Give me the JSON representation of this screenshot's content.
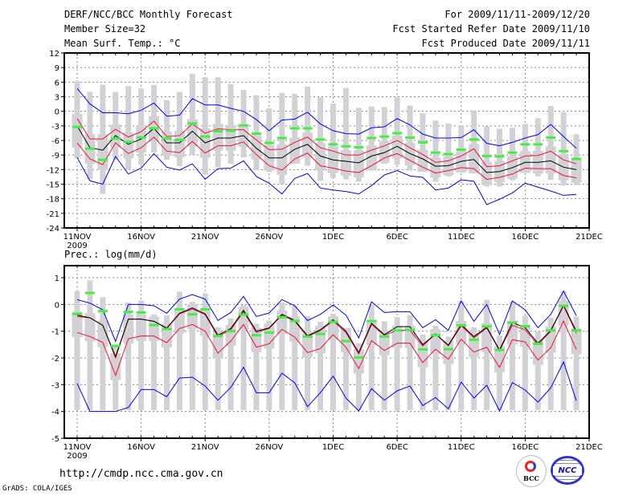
{
  "header": {
    "title": "DERF/NCC/BCC Monthly Forecast",
    "member_size": "Member Size=32",
    "variable": "Mean Surf. Temp.: °C",
    "period": "For 2009/11/11-2009/12/20",
    "started": "Fcst Started Refer Date 2009/11/10",
    "produced": "Fcst Produced Date 2009/11/11"
  },
  "footer": {
    "url": "http://cmdp.ncc.cma.gov.cn",
    "grads": "GrADS: COLA/IGES",
    "logo_bcc": "BCC",
    "logo_ncc": "NCC"
  },
  "colors": {
    "bar": "#d2d2d6",
    "obs": "#44ee44",
    "mean": "#000000",
    "spread": "#ee1133",
    "envelope": "#0000ee",
    "grid": "#888888"
  },
  "chart_data": [
    {
      "type": "line",
      "title": "Mean Surf. Temp.: °C",
      "ylim": [
        -24,
        12
      ],
      "yticks": [
        12,
        9,
        6,
        3,
        0,
        -3,
        -6,
        -9,
        -12,
        -15,
        -18,
        -21,
        -24
      ],
      "xtick_labels": [
        "11NOV",
        "16NOV",
        "21NOV",
        "26NOV",
        "1DEC",
        "6DEC",
        "11DEC",
        "16DEC",
        "21DEC"
      ],
      "xtick_year": "2009",
      "grid": true,
      "n_days": 40,
      "series": [
        {
          "name": "envelope_max",
          "values": [
            4.7,
            1.5,
            -0.3,
            -0.3,
            -0.5,
            0.2,
            1.7,
            -1,
            -0.8,
            2.6,
            1.3,
            1.3,
            0.6,
            0,
            -1.7,
            -4,
            -1.8,
            -1.6,
            -0.2,
            -2.6,
            -4,
            -4.6,
            -4.7,
            -3.4,
            -3.2,
            -1.5,
            -2.8,
            -4.7,
            -5.5,
            -5.5,
            -5.4,
            -3.8,
            -6.6,
            -7.1,
            -6.4,
            -5.5,
            -4.8,
            -2.7,
            -5.2,
            -7.6
          ]
        },
        {
          "name": "spread_upper",
          "values": [
            -1.5,
            -5.7,
            -5.7,
            -3.7,
            -5.3,
            -4.2,
            -2,
            -5.2,
            -5,
            -2.6,
            -4.5,
            -3.6,
            -3.8,
            -3.8,
            -5.9,
            -7.9,
            -7.8,
            -6.4,
            -5.3,
            -7.5,
            -8.2,
            -9,
            -9,
            -8,
            -7.1,
            -6,
            -7.5,
            -8.9,
            -10.5,
            -10.2,
            -9.2,
            -7.7,
            -11.4,
            -11.2,
            -10.2,
            -9.2,
            -9.1,
            -8.2,
            -10,
            -10.8
          ]
        },
        {
          "name": "ensemble_mean",
          "values": [
            -3,
            -7.5,
            -8,
            -5,
            -6.8,
            -5.7,
            -3.5,
            -6.5,
            -6.5,
            -4.1,
            -6.5,
            -5.5,
            -5.5,
            -5,
            -7.6,
            -9.6,
            -9.6,
            -7.8,
            -6.8,
            -9.2,
            -10,
            -10.3,
            -10.6,
            -9.2,
            -8.5,
            -7.2,
            -8.7,
            -9.8,
            -11.3,
            -11.2,
            -10.3,
            -9.9,
            -12.6,
            -12.4,
            -11.6,
            -10.5,
            -10.5,
            -10.2,
            -11.5,
            -12
          ]
        },
        {
          "name": "spread_lower",
          "values": [
            -6.5,
            -9.8,
            -11,
            -6.5,
            -8.7,
            -7.5,
            -5.3,
            -8.2,
            -8.5,
            -6.2,
            -8.6,
            -7.1,
            -7.1,
            -6.3,
            -8.9,
            -11.2,
            -12.1,
            -9.8,
            -8.6,
            -11.2,
            -11.7,
            -12.3,
            -12.6,
            -11.2,
            -9.6,
            -8.7,
            -10.1,
            -11.5,
            -12.7,
            -12.2,
            -11.6,
            -11.8,
            -14,
            -13.6,
            -12.9,
            -11.7,
            -11.8,
            -11.8,
            -13.2,
            -13.7
          ]
        },
        {
          "name": "envelope_min",
          "values": [
            -9.5,
            -14.3,
            -15,
            -9.3,
            -12.9,
            -11.7,
            -8.7,
            -11.5,
            -12.1,
            -10.8,
            -14,
            -11.8,
            -11.7,
            -10.2,
            -13.4,
            -14.8,
            -17,
            -13.8,
            -12.8,
            -15.8,
            -16.2,
            -16.5,
            -17,
            -15.3,
            -13.1,
            -12.2,
            -13.3,
            -13.6,
            -16.2,
            -15.8,
            -14.1,
            -14.4,
            -19.2,
            -18.1,
            -16.8,
            -14.8,
            -15.6,
            -16.4,
            -17.3,
            -17.1
          ]
        },
        {
          "name": "observed_marker",
          "values": [
            -3.2,
            -7.7,
            -10,
            -5.6,
            -6.3,
            -5.4,
            -3.5,
            -5.6,
            -5.9,
            -2.5,
            -5.2,
            -4.1,
            -4,
            -2.9,
            -4.6,
            -6.5,
            -5.5,
            -3.5,
            -3.5,
            -5.8,
            -6.8,
            -7.2,
            -7.4,
            -5.5,
            -5.2,
            -4.5,
            -5.4,
            -6.4,
            -8.5,
            -8.8,
            -7.9,
            -5.8,
            -9.2,
            -9.3,
            -8.5,
            -6.8,
            -6.8,
            -5.4,
            -8.2,
            -9.8
          ]
        },
        {
          "name": "range_max",
          "values": [
            6.2,
            4,
            5.5,
            4,
            5.2,
            4.7,
            5.4,
            2.3,
            4,
            7.7,
            7,
            7,
            5.6,
            4.4,
            3.3,
            0.6,
            3.8,
            3.6,
            5.1,
            2.9,
            1.6,
            4.8,
            0.7,
            1,
            0.9,
            2.8,
            1.2,
            -0.4,
            -1.9,
            -2.5,
            -2.9,
            0.2,
            -3.1,
            -3.6,
            -3.4,
            -2.6,
            -1.4,
            1.1,
            -0.2,
            -4.7
          ]
        },
        {
          "name": "range_min",
          "values": [
            -9.7,
            -14,
            -17,
            -10,
            -12,
            -11,
            -8.5,
            -10,
            -11.3,
            -9,
            -13,
            -11.5,
            -10.8,
            -9.5,
            -12.1,
            -12.5,
            -15,
            -10.4,
            -11.2,
            -14.3,
            -13.7,
            -14,
            -14.5,
            -12,
            -10.8,
            -11,
            -12.2,
            -12,
            -14.5,
            -13.4,
            -12.6,
            -11.8,
            -15.5,
            -15.5,
            -14.2,
            -12,
            -13.4,
            -14.1,
            -15.3,
            -15.2
          ]
        }
      ]
    },
    {
      "type": "line",
      "title": "Prec.: log(mm/d)",
      "ylim": [
        -5,
        1.45
      ],
      "yticks": [
        1,
        0,
        -1,
        -2,
        -3,
        -4,
        -5
      ],
      "xtick_labels": [
        "11NOV",
        "16NOV",
        "21NOV",
        "26NOV",
        "1DEC",
        "6DEC",
        "11DEC",
        "16DEC",
        "21DEC"
      ],
      "xtick_year": "2009",
      "grid": true,
      "n_days": 40,
      "series": [
        {
          "name": "envelope_max",
          "values": [
            0.18,
            0.05,
            -0.2,
            -1.38,
            0,
            0,
            -0.05,
            -0.33,
            0.2,
            0.37,
            0.2,
            -0.6,
            -0.3,
            0.3,
            -0.45,
            -0.32,
            0.18,
            -0.05,
            -0.6,
            -0.37,
            -0.02,
            -0.4,
            -1.25,
            0.1,
            -0.3,
            -0.27,
            -0.27,
            -0.87,
            -0.57,
            -0.97,
            0.13,
            -0.63,
            0,
            -1.12,
            0.13,
            -0.2,
            -0.87,
            -0.37,
            0.5,
            -0.42
          ]
        },
        {
          "name": "spread_upper",
          "values": [
            -0.45,
            -0.5,
            -0.78,
            -2,
            -0.55,
            -0.55,
            -0.63,
            -0.9,
            -0.35,
            -0.17,
            -0.38,
            -1.2,
            -0.95,
            -0.27,
            -1.05,
            -0.9,
            -0.4,
            -0.63,
            -1.2,
            -0.98,
            -0.62,
            -1.05,
            -1.85,
            -0.75,
            -1.15,
            -0.97,
            -0.97,
            -1.55,
            -1.1,
            -1.55,
            -0.8,
            -1.25,
            -0.88,
            -1.73,
            -0.78,
            -0.95,
            -1.5,
            -1,
            -0.05,
            -1.08
          ]
        },
        {
          "name": "ensemble_mean",
          "values": [
            -0.4,
            -0.5,
            -0.78,
            -1.95,
            -0.55,
            -0.55,
            -0.63,
            -0.88,
            -0.33,
            -0.13,
            -0.35,
            -1.15,
            -0.9,
            -0.22,
            -1,
            -0.88,
            -0.37,
            -0.6,
            -1.17,
            -0.95,
            -0.57,
            -1,
            -1.8,
            -0.7,
            -1.13,
            -0.83,
            -0.83,
            -1.5,
            -1.1,
            -1.52,
            -0.75,
            -1.2,
            -0.85,
            -1.7,
            -0.68,
            -0.87,
            -1.45,
            -0.97,
            -0.03,
            -1
          ]
        },
        {
          "name": "spread_lower",
          "values": [
            -1.05,
            -1.2,
            -1.42,
            -2.65,
            -1.28,
            -1.18,
            -1.18,
            -1.43,
            -0.9,
            -0.75,
            -1,
            -1.82,
            -1.37,
            -0.75,
            -1.6,
            -1.47,
            -0.93,
            -1.22,
            -1.8,
            -1.65,
            -1.13,
            -1.6,
            -2.4,
            -1.35,
            -1.72,
            -1.45,
            -1.45,
            -2.17,
            -1.67,
            -2.05,
            -1.3,
            -1.78,
            -1.6,
            -2.35,
            -1.32,
            -1.4,
            -2.08,
            -1.62,
            -0.62,
            -1.68
          ]
        },
        {
          "name": "envelope_min",
          "values": [
            -2.95,
            -4,
            -4,
            -4,
            -3.85,
            -3.18,
            -3.18,
            -3.45,
            -2.75,
            -2.72,
            -3.05,
            -3.58,
            -3.1,
            -2.35,
            -3.3,
            -3.3,
            -2.57,
            -2.93,
            -3.82,
            -3.3,
            -2.68,
            -3.5,
            -3.98,
            -3.15,
            -3.58,
            -3.23,
            -3.05,
            -3.78,
            -3.48,
            -3.9,
            -2.9,
            -3.5,
            -3.02,
            -3.98,
            -2.92,
            -3.2,
            -3.65,
            -3.12,
            -2.15,
            -3.6
          ]
        },
        {
          "name": "observed_marker",
          "values": [
            -0.35,
            0.43,
            -0.25,
            -1.55,
            -0.28,
            -0.3,
            -0.77,
            -0.92,
            -0.18,
            -0.37,
            -0.18,
            -1.18,
            -1,
            -0.38,
            -1.15,
            -1.05,
            -0.48,
            -0.62,
            -1.2,
            -1.1,
            -0.65,
            -1.37,
            -1.98,
            -0.62,
            -1.2,
            -0.97,
            -0.95,
            -1.68,
            -1.15,
            -1.67,
            -0.78,
            -1.32,
            -0.82,
            -1.7,
            -0.68,
            -0.82,
            -1.47,
            -0.97,
            -0.05,
            -0.97
          ]
        },
        {
          "name": "range_max",
          "values": [
            0.5,
            0.9,
            0.27,
            -1.5,
            0.07,
            0.15,
            -0.37,
            -0.4,
            0.48,
            0.1,
            0.42,
            -0.85,
            -0.52,
            -0.02,
            -0.72,
            -0.6,
            0.07,
            -0.05,
            -0.43,
            -0.65,
            -0.35,
            -1,
            -1.45,
            0,
            -0.63,
            -0.47,
            -0.4,
            -1.12,
            -0.8,
            -1.2,
            0.13,
            -0.85,
            0.17,
            -1.15,
            0.1,
            -0.42,
            -1,
            -0.5,
            0.5,
            -0.45
          ]
        },
        {
          "name": "range_min",
          "values": [
            -3.95,
            -3.95,
            -3.95,
            -3.95,
            -3.95,
            -3.95,
            -3.95,
            -3.95,
            -3.95,
            -3.95,
            -3.95,
            -3.95,
            -3.95,
            -3.95,
            -3.95,
            -3.95,
            -3.95,
            -3.95,
            -3.95,
            -3.95,
            -3.95,
            -3.95,
            -3.95,
            -3.95,
            -3.95,
            -3.95,
            -3.95,
            -3.95,
            -3.95,
            -3.95,
            -3.95,
            -3.95,
            -3.95,
            -3.95,
            -3.95,
            -3.95,
            -3.95,
            -3.95,
            -3.95,
            -3.95
          ]
        }
      ]
    }
  ]
}
